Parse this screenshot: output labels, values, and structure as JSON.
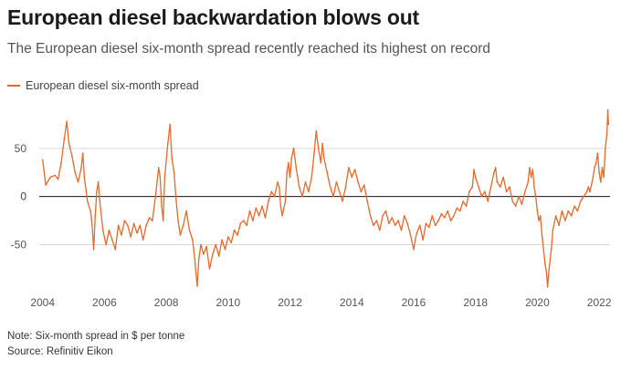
{
  "chart_data": {
    "type": "line",
    "title": "European diesel backwardation blows out",
    "subtitle": "The European diesel six-month spread recently reached its highest on record",
    "xlabel": "",
    "ylabel": "",
    "x_ticks": [
      "2004",
      "2006",
      "2008",
      "2010",
      "2012",
      "2014",
      "2016",
      "2018",
      "2020",
      "2022"
    ],
    "y_ticks": [
      50,
      0,
      -50
    ],
    "xlim": [
      2003.95,
      2022.35
    ],
    "ylim": [
      -95,
      100
    ],
    "grid": "horizontal",
    "zero_line": true,
    "legend_position": "top-left",
    "series": [
      {
        "name": "European diesel six-month spread",
        "color": "#e4692b",
        "points": [
          [
            2004.0,
            38
          ],
          [
            2004.1,
            12
          ],
          [
            2004.25,
            20
          ],
          [
            2004.4,
            22
          ],
          [
            2004.5,
            18
          ],
          [
            2004.6,
            35
          ],
          [
            2004.7,
            60
          ],
          [
            2004.78,
            78
          ],
          [
            2004.85,
            55
          ],
          [
            2004.95,
            42
          ],
          [
            2005.05,
            25
          ],
          [
            2005.15,
            15
          ],
          [
            2005.25,
            30
          ],
          [
            2005.3,
            45
          ],
          [
            2005.35,
            20
          ],
          [
            2005.45,
            -5
          ],
          [
            2005.55,
            -15
          ],
          [
            2005.6,
            -30
          ],
          [
            2005.65,
            -55
          ],
          [
            2005.7,
            -20
          ],
          [
            2005.75,
            5
          ],
          [
            2005.8,
            15
          ],
          [
            2005.85,
            -5
          ],
          [
            2005.95,
            -35
          ],
          [
            2006.05,
            -50
          ],
          [
            2006.15,
            -35
          ],
          [
            2006.25,
            -45
          ],
          [
            2006.35,
            -55
          ],
          [
            2006.45,
            -30
          ],
          [
            2006.55,
            -40
          ],
          [
            2006.65,
            -25
          ],
          [
            2006.75,
            -30
          ],
          [
            2006.85,
            -42
          ],
          [
            2006.95,
            -28
          ],
          [
            2007.05,
            -38
          ],
          [
            2007.15,
            -30
          ],
          [
            2007.25,
            -45
          ],
          [
            2007.35,
            -30
          ],
          [
            2007.45,
            -22
          ],
          [
            2007.55,
            -25
          ],
          [
            2007.65,
            0
          ],
          [
            2007.75,
            30
          ],
          [
            2007.8,
            20
          ],
          [
            2007.85,
            -10
          ],
          [
            2007.9,
            -25
          ],
          [
            2007.95,
            20
          ],
          [
            2008.05,
            55
          ],
          [
            2008.12,
            75
          ],
          [
            2008.18,
            40
          ],
          [
            2008.25,
            25
          ],
          [
            2008.32,
            -5
          ],
          [
            2008.38,
            -25
          ],
          [
            2008.45,
            -40
          ],
          [
            2008.55,
            -30
          ],
          [
            2008.65,
            -15
          ],
          [
            2008.75,
            -35
          ],
          [
            2008.85,
            -45
          ],
          [
            2008.92,
            -65
          ],
          [
            2008.96,
            -80
          ],
          [
            2009.0,
            -93
          ],
          [
            2009.05,
            -65
          ],
          [
            2009.12,
            -50
          ],
          [
            2009.2,
            -60
          ],
          [
            2009.3,
            -52
          ],
          [
            2009.4,
            -75
          ],
          [
            2009.5,
            -60
          ],
          [
            2009.6,
            -50
          ],
          [
            2009.7,
            -62
          ],
          [
            2009.8,
            -45
          ],
          [
            2009.9,
            -55
          ],
          [
            2010.0,
            -42
          ],
          [
            2010.1,
            -48
          ],
          [
            2010.2,
            -35
          ],
          [
            2010.3,
            -40
          ],
          [
            2010.4,
            -28
          ],
          [
            2010.5,
            -25
          ],
          [
            2010.6,
            -30
          ],
          [
            2010.7,
            -15
          ],
          [
            2010.8,
            -25
          ],
          [
            2010.9,
            -12
          ],
          [
            2011.0,
            -20
          ],
          [
            2011.1,
            -10
          ],
          [
            2011.2,
            -22
          ],
          [
            2011.3,
            -5
          ],
          [
            2011.4,
            5
          ],
          [
            2011.5,
            0
          ],
          [
            2011.6,
            15
          ],
          [
            2011.65,
            10
          ],
          [
            2011.7,
            -10
          ],
          [
            2011.75,
            -20
          ],
          [
            2011.85,
            -5
          ],
          [
            2011.9,
            25
          ],
          [
            2011.95,
            35
          ],
          [
            2012.0,
            20
          ],
          [
            2012.05,
            40
          ],
          [
            2012.12,
            50
          ],
          [
            2012.2,
            30
          ],
          [
            2012.3,
            10
          ],
          [
            2012.4,
            0
          ],
          [
            2012.5,
            15
          ],
          [
            2012.6,
            5
          ],
          [
            2012.7,
            20
          ],
          [
            2012.78,
            45
          ],
          [
            2012.85,
            68
          ],
          [
            2012.92,
            50
          ],
          [
            2013.0,
            35
          ],
          [
            2013.05,
            55
          ],
          [
            2013.1,
            40
          ],
          [
            2013.2,
            25
          ],
          [
            2013.3,
            10
          ],
          [
            2013.4,
            0
          ],
          [
            2013.5,
            15
          ],
          [
            2013.6,
            5
          ],
          [
            2013.7,
            -5
          ],
          [
            2013.8,
            10
          ],
          [
            2013.9,
            30
          ],
          [
            2013.95,
            25
          ],
          [
            2014.0,
            20
          ],
          [
            2014.1,
            28
          ],
          [
            2014.2,
            15
          ],
          [
            2014.3,
            5
          ],
          [
            2014.4,
            12
          ],
          [
            2014.5,
            -5
          ],
          [
            2014.6,
            -20
          ],
          [
            2014.7,
            -30
          ],
          [
            2014.8,
            -25
          ],
          [
            2014.9,
            -35
          ],
          [
            2015.0,
            -20
          ],
          [
            2015.1,
            -15
          ],
          [
            2015.2,
            -28
          ],
          [
            2015.3,
            -22
          ],
          [
            2015.4,
            -30
          ],
          [
            2015.5,
            -25
          ],
          [
            2015.6,
            -35
          ],
          [
            2015.7,
            -20
          ],
          [
            2015.8,
            -28
          ],
          [
            2015.9,
            -40
          ],
          [
            2016.0,
            -55
          ],
          [
            2016.05,
            -45
          ],
          [
            2016.1,
            -38
          ],
          [
            2016.2,
            -30
          ],
          [
            2016.3,
            -45
          ],
          [
            2016.4,
            -28
          ],
          [
            2016.5,
            -32
          ],
          [
            2016.6,
            -20
          ],
          [
            2016.7,
            -30
          ],
          [
            2016.8,
            -25
          ],
          [
            2016.9,
            -18
          ],
          [
            2017.0,
            -22
          ],
          [
            2017.1,
            -15
          ],
          [
            2017.2,
            -25
          ],
          [
            2017.3,
            -20
          ],
          [
            2017.4,
            -12
          ],
          [
            2017.5,
            -15
          ],
          [
            2017.6,
            -5
          ],
          [
            2017.7,
            -10
          ],
          [
            2017.8,
            5
          ],
          [
            2017.9,
            10
          ],
          [
            2017.95,
            28
          ],
          [
            2018.0,
            20
          ],
          [
            2018.1,
            10
          ],
          [
            2018.2,
            0
          ],
          [
            2018.3,
            5
          ],
          [
            2018.4,
            -5
          ],
          [
            2018.5,
            10
          ],
          [
            2018.6,
            25
          ],
          [
            2018.65,
            30
          ],
          [
            2018.7,
            15
          ],
          [
            2018.8,
            10
          ],
          [
            2018.9,
            20
          ],
          [
            2019.0,
            5
          ],
          [
            2019.1,
            10
          ],
          [
            2019.2,
            -5
          ],
          [
            2019.3,
            -10
          ],
          [
            2019.4,
            0
          ],
          [
            2019.5,
            -8
          ],
          [
            2019.6,
            5
          ],
          [
            2019.7,
            15
          ],
          [
            2019.75,
            30
          ],
          [
            2019.8,
            20
          ],
          [
            2019.85,
            28
          ],
          [
            2019.9,
            10
          ],
          [
            2019.95,
            0
          ],
          [
            2020.0,
            -15
          ],
          [
            2020.05,
            -25
          ],
          [
            2020.1,
            -20
          ],
          [
            2020.15,
            -40
          ],
          [
            2020.2,
            -55
          ],
          [
            2020.25,
            -70
          ],
          [
            2020.3,
            -80
          ],
          [
            2020.33,
            -94
          ],
          [
            2020.38,
            -75
          ],
          [
            2020.45,
            -55
          ],
          [
            2020.5,
            -35
          ],
          [
            2020.6,
            -20
          ],
          [
            2020.7,
            -30
          ],
          [
            2020.8,
            -15
          ],
          [
            2020.9,
            -25
          ],
          [
            2021.0,
            -15
          ],
          [
            2021.1,
            -20
          ],
          [
            2021.2,
            -10
          ],
          [
            2021.3,
            -15
          ],
          [
            2021.4,
            -5
          ],
          [
            2021.5,
            0
          ],
          [
            2021.6,
            5
          ],
          [
            2021.65,
            10
          ],
          [
            2021.7,
            5
          ],
          [
            2021.75,
            12
          ],
          [
            2021.8,
            20
          ],
          [
            2021.85,
            30
          ],
          [
            2021.9,
            35
          ],
          [
            2021.95,
            45
          ],
          [
            2022.0,
            25
          ],
          [
            2022.05,
            15
          ],
          [
            2022.1,
            30
          ],
          [
            2022.15,
            20
          ],
          [
            2022.2,
            50
          ],
          [
            2022.25,
            65
          ],
          [
            2022.28,
            90
          ],
          [
            2022.3,
            75
          ]
        ]
      }
    ]
  },
  "footer": {
    "note": "Note: Six-month spread in $ per tonne",
    "source": "Source: Refinitiv Eikon"
  }
}
